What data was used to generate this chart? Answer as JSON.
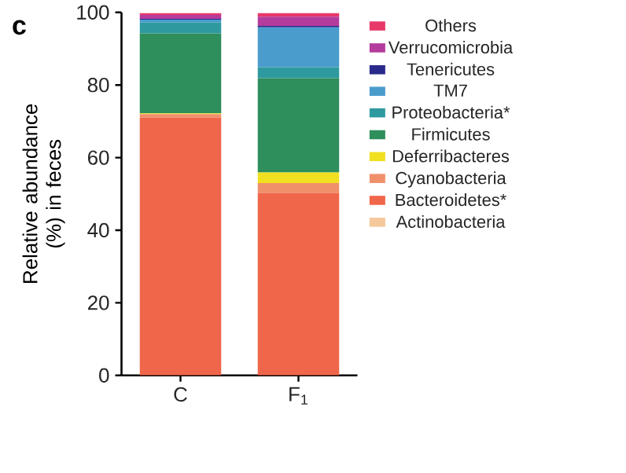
{
  "chart_data": {
    "type": "bar",
    "stacked": true,
    "title": "c",
    "ylabel": "Relative abundance (%) in feces",
    "categories": [
      "C",
      "F$_{1}$"
    ],
    "ylim": [
      0,
      100
    ],
    "yticks": [
      0,
      20,
      40,
      60,
      80,
      100
    ],
    "grid": false,
    "legend": "right",
    "series": [
      {
        "name": "Actinobacteria",
        "color": "#f4c89a",
        "values": [
          null,
          null
        ]
      },
      {
        "name": "Bacteroidetes*",
        "color": "#f0664a",
        "values": [
          71,
          50.3
        ]
      },
      {
        "name": "Cyanobacteria",
        "color": "#f0906a",
        "values": [
          1,
          2.7
        ]
      },
      {
        "name": "Deferribacteres",
        "color": "#f0e020",
        "values": [
          0.2,
          2.9
        ]
      },
      {
        "name": "Firmicutes",
        "color": "#2e8e5c",
        "values": [
          22,
          26
        ]
      },
      {
        "name": "Proteobacteria*",
        "color": "#2e9aa0",
        "values": [
          3,
          3
        ]
      },
      {
        "name": "TM7",
        "color": "#4a9ccc",
        "values": [
          0.8,
          11
        ]
      },
      {
        "name": "Tenericutes",
        "color": "#2a2a8c",
        "values": [
          0.2,
          0.4
        ]
      },
      {
        "name": "Verrucomicrobia",
        "color": "#b43c9c",
        "values": [
          1.1,
          2.5
        ]
      },
      {
        "name": "Others",
        "color": "#e8386a",
        "values": [
          0.5,
          1
        ]
      }
    ]
  }
}
